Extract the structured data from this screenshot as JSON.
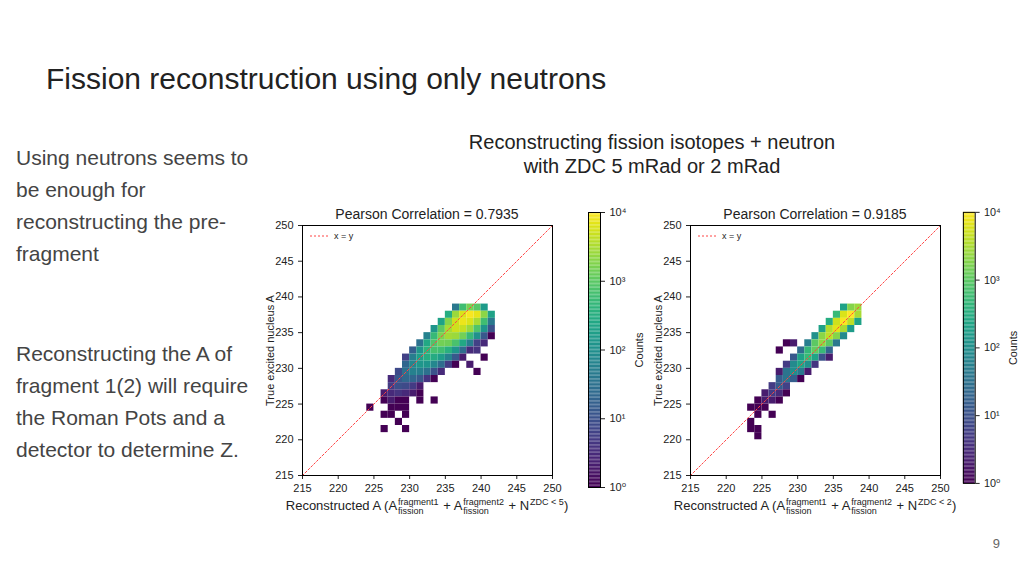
{
  "slide": {
    "title": "Fission reconstruction using only neutrons",
    "heading": [
      "Reconstructing fission isotopes + neutron",
      "with ZDC 5 mRad or 2 mRad"
    ],
    "text": [
      "Using neutrons seems to be enough for reconstructing the pre-fragment",
      "Reconstructing the A of fragment 1(2) will require the Roman Pots and a detector to determine Z."
    ],
    "page": 9
  },
  "chart_data": [
    {
      "type": "heatmap",
      "title": "Pearson Correlation = 0.7935",
      "x_label": [
        {
          "text": "Reconstructed A (A"
        },
        {
          "sup": "fragment1",
          "sub": "fission"
        },
        {
          "text": " + A"
        },
        {
          "sup": "fragment2",
          "sub": "fission"
        },
        {
          "text": " + N"
        },
        {
          "sup": "ZDC < 5"
        },
        {
          "text": ")"
        }
      ],
      "y_label": "True excited nucleus A",
      "xlim": [
        215,
        250
      ],
      "xticks": [
        215,
        220,
        225,
        230,
        235,
        240,
        245,
        250
      ],
      "ylim": [
        215,
        250
      ],
      "yticks": [
        215,
        220,
        225,
        230,
        235,
        240,
        245,
        250
      ],
      "bin_width": 1,
      "series": [
        {
          "name": "x = y",
          "type": "line",
          "color": "#ff4444",
          "line_style": "dotted",
          "x": [
            215,
            250
          ],
          "y": [
            215,
            250
          ]
        }
      ],
      "cells": [
        [
          236,
          238,
          40
        ],
        [
          237,
          238,
          600
        ],
        [
          238,
          238,
          1500
        ],
        [
          239,
          238,
          900
        ],
        [
          240,
          238,
          150
        ],
        [
          235,
          237,
          300
        ],
        [
          236,
          237,
          2500
        ],
        [
          237,
          237,
          6000
        ],
        [
          238,
          237,
          9000
        ],
        [
          239,
          237,
          7000
        ],
        [
          240,
          237,
          2000
        ],
        [
          241,
          237,
          200
        ],
        [
          234,
          236,
          200
        ],
        [
          235,
          236,
          1800
        ],
        [
          236,
          236,
          5000
        ],
        [
          237,
          236,
          7500
        ],
        [
          238,
          236,
          6000
        ],
        [
          239,
          236,
          3000
        ],
        [
          240,
          236,
          600
        ],
        [
          241,
          236,
          40
        ],
        [
          233,
          235,
          120
        ],
        [
          234,
          235,
          1000
        ],
        [
          235,
          235,
          3000
        ],
        [
          236,
          235,
          5000
        ],
        [
          237,
          235,
          4500
        ],
        [
          238,
          235,
          2500
        ],
        [
          239,
          235,
          800
        ],
        [
          240,
          235,
          120
        ],
        [
          241,
          235,
          10
        ],
        [
          232,
          234,
          60
        ],
        [
          233,
          234,
          500
        ],
        [
          234,
          234,
          1600
        ],
        [
          235,
          234,
          2800
        ],
        [
          236,
          234,
          2500
        ],
        [
          237,
          234,
          1400
        ],
        [
          238,
          234,
          500
        ],
        [
          239,
          234,
          100
        ],
        [
          240,
          234,
          12
        ],
        [
          241,
          234,
          1
        ],
        [
          231,
          233,
          30
        ],
        [
          232,
          233,
          250
        ],
        [
          233,
          233,
          800
        ],
        [
          234,
          233,
          1400
        ],
        [
          235,
          233,
          1300
        ],
        [
          236,
          233,
          700
        ],
        [
          237,
          233,
          250
        ],
        [
          238,
          233,
          50
        ],
        [
          239,
          233,
          6
        ],
        [
          240,
          233,
          3
        ],
        [
          230,
          232,
          15
        ],
        [
          231,
          232,
          120
        ],
        [
          232,
          232,
          380
        ],
        [
          233,
          232,
          650
        ],
        [
          234,
          232,
          600
        ],
        [
          235,
          232,
          350
        ],
        [
          236,
          232,
          120
        ],
        [
          237,
          232,
          25
        ],
        [
          238,
          232,
          3
        ],
        [
          239,
          232,
          4
        ],
        [
          229,
          231,
          6
        ],
        [
          230,
          231,
          50
        ],
        [
          231,
          231,
          170
        ],
        [
          232,
          231,
          300
        ],
        [
          233,
          231,
          280
        ],
        [
          234,
          231,
          160
        ],
        [
          235,
          231,
          55
        ],
        [
          236,
          231,
          12
        ],
        [
          237,
          231,
          2
        ],
        [
          240,
          231,
          1
        ],
        [
          229,
          230,
          20
        ],
        [
          230,
          230,
          70
        ],
        [
          231,
          230,
          130
        ],
        [
          232,
          230,
          120
        ],
        [
          233,
          230,
          70
        ],
        [
          234,
          230,
          25
        ],
        [
          235,
          230,
          5
        ],
        [
          236,
          230,
          1
        ],
        [
          238,
          230,
          2
        ],
        [
          228,
          229,
          8
        ],
        [
          229,
          229,
          30
        ],
        [
          230,
          229,
          55
        ],
        [
          231,
          229,
          50
        ],
        [
          232,
          229,
          30
        ],
        [
          233,
          229,
          10
        ],
        [
          234,
          229,
          3
        ],
        [
          239,
          229,
          1
        ],
        [
          227,
          228,
          3
        ],
        [
          228,
          228,
          12
        ],
        [
          229,
          228,
          22
        ],
        [
          230,
          228,
          20
        ],
        [
          231,
          228,
          12
        ],
        [
          232,
          228,
          4
        ],
        [
          233,
          228,
          1
        ],
        [
          227,
          227,
          5
        ],
        [
          228,
          227,
          9
        ],
        [
          229,
          227,
          8
        ],
        [
          230,
          227,
          5
        ],
        [
          231,
          227,
          2
        ],
        [
          226,
          226,
          2
        ],
        [
          227,
          226,
          3
        ],
        [
          228,
          226,
          4
        ],
        [
          229,
          226,
          3
        ],
        [
          230,
          226,
          2
        ],
        [
          231,
          226,
          1
        ],
        [
          226,
          225,
          1
        ],
        [
          227,
          225,
          2
        ],
        [
          228,
          225,
          1
        ],
        [
          229,
          225,
          1
        ],
        [
          231,
          225,
          1
        ],
        [
          233,
          225,
          1
        ],
        [
          224,
          224,
          1
        ],
        [
          227,
          224,
          1
        ],
        [
          228,
          224,
          1
        ],
        [
          229,
          224,
          1
        ],
        [
          226,
          223,
          1
        ],
        [
          227,
          223,
          1
        ],
        [
          229,
          223,
          1
        ],
        [
          228,
          222,
          1
        ],
        [
          226,
          221,
          1
        ],
        [
          229,
          221,
          1
        ]
      ],
      "colorbar": {
        "label": "Counts",
        "range": [
          1,
          10000
        ],
        "ticks": [
          {
            "value": 1,
            "label": "10⁰"
          },
          {
            "value": 10,
            "label": "10¹"
          },
          {
            "value": 100,
            "label": "10²"
          },
          {
            "value": 1000,
            "label": "10³"
          },
          {
            "value": 10000,
            "label": "10⁴"
          }
        ]
      }
    },
    {
      "type": "heatmap",
      "title": "Pearson Correlation = 0.9185",
      "x_label": [
        {
          "text": "Reconstructed A (A"
        },
        {
          "sup": "fragment1",
          "sub": "fission"
        },
        {
          "text": " + A"
        },
        {
          "sup": "fragment2",
          "sub": "fission"
        },
        {
          "text": " + N"
        },
        {
          "sup": "ZDC < 2"
        },
        {
          "text": ")"
        }
      ],
      "y_label": "True excited nucleus A",
      "xlim": [
        215,
        250
      ],
      "xticks": [
        215,
        220,
        225,
        230,
        235,
        240,
        245,
        250
      ],
      "ylim": [
        215,
        250
      ],
      "yticks": [
        215,
        220,
        225,
        230,
        235,
        240,
        245,
        250
      ],
      "bin_width": 1,
      "series": [
        {
          "name": "x = y",
          "type": "line",
          "color": "#ff4444",
          "line_style": "dotted",
          "x": [
            215,
            250
          ],
          "y": [
            215,
            250
          ]
        }
      ],
      "cells": [
        [
          236,
          238,
          200
        ],
        [
          237,
          238,
          1800
        ],
        [
          238,
          238,
          2500
        ],
        [
          235,
          237,
          500
        ],
        [
          236,
          237,
          6000
        ],
        [
          237,
          237,
          10000
        ],
        [
          238,
          237,
          3000
        ],
        [
          234,
          236,
          300
        ],
        [
          235,
          236,
          5000
        ],
        [
          236,
          236,
          9000
        ],
        [
          237,
          236,
          4000
        ],
        [
          238,
          236,
          200
        ],
        [
          233,
          235,
          200
        ],
        [
          234,
          235,
          3500
        ],
        [
          235,
          235,
          6500
        ],
        [
          236,
          235,
          3000
        ],
        [
          237,
          235,
          150
        ],
        [
          232,
          234,
          100
        ],
        [
          233,
          234,
          2000
        ],
        [
          234,
          234,
          4000
        ],
        [
          235,
          234,
          1800
        ],
        [
          236,
          234,
          80
        ],
        [
          231,
          233,
          50
        ],
        [
          232,
          233,
          1000
        ],
        [
          233,
          233,
          2200
        ],
        [
          234,
          233,
          1000
        ],
        [
          235,
          233,
          40
        ],
        [
          228,
          233,
          1
        ],
        [
          229,
          233,
          2
        ],
        [
          230,
          232,
          25
        ],
        [
          231,
          232,
          450
        ],
        [
          232,
          232,
          1100
        ],
        [
          233,
          232,
          500
        ],
        [
          234,
          232,
          20
        ],
        [
          227,
          232,
          1
        ],
        [
          229,
          231,
          12
        ],
        [
          230,
          231,
          200
        ],
        [
          231,
          231,
          500
        ],
        [
          232,
          231,
          220
        ],
        [
          233,
          231,
          10
        ],
        [
          234,
          231,
          2
        ],
        [
          228,
          230,
          5
        ],
        [
          229,
          230,
          80
        ],
        [
          230,
          230,
          220
        ],
        [
          231,
          230,
          100
        ],
        [
          232,
          230,
          4
        ],
        [
          227,
          229,
          2
        ],
        [
          228,
          229,
          35
        ],
        [
          229,
          229,
          90
        ],
        [
          230,
          229,
          40
        ],
        [
          231,
          229,
          2
        ],
        [
          227,
          228,
          14
        ],
        [
          228,
          228,
          35
        ],
        [
          229,
          228,
          15
        ],
        [
          230,
          228,
          1
        ],
        [
          226,
          227,
          5
        ],
        [
          227,
          227,
          14
        ],
        [
          228,
          227,
          6
        ],
        [
          225,
          226,
          2
        ],
        [
          226,
          226,
          5
        ],
        [
          227,
          226,
          3
        ],
        [
          228,
          226,
          1
        ],
        [
          224,
          225,
          1
        ],
        [
          225,
          225,
          2
        ],
        [
          226,
          225,
          2
        ],
        [
          227,
          225,
          1
        ],
        [
          223,
          224,
          1
        ],
        [
          224,
          224,
          1
        ],
        [
          225,
          224,
          1
        ],
        [
          224,
          223,
          1
        ],
        [
          226,
          223,
          1
        ],
        [
          223,
          222,
          1
        ],
        [
          223,
          221,
          1
        ],
        [
          224,
          221,
          1
        ],
        [
          224,
          220,
          1
        ]
      ],
      "colorbar": {
        "label": "Counts",
        "range": [
          1,
          10000
        ],
        "ticks": [
          {
            "value": 1,
            "label": "10⁰"
          },
          {
            "value": 10,
            "label": "10¹"
          },
          {
            "value": 100,
            "label": "10²"
          },
          {
            "value": 1000,
            "label": "10³"
          },
          {
            "value": 10000,
            "label": "10⁴"
          }
        ]
      }
    }
  ]
}
